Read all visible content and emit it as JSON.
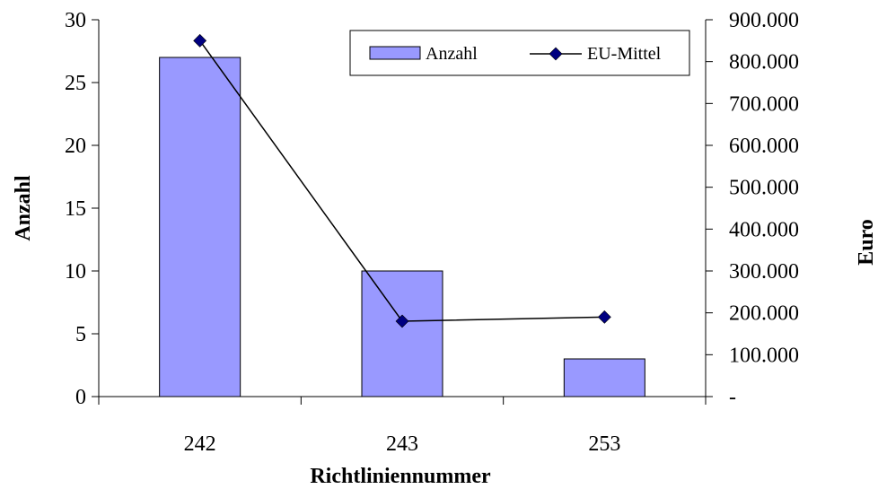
{
  "chart_data": {
    "type": "bar",
    "categories": [
      "242",
      "243",
      "253"
    ],
    "series": [
      {
        "name": "Anzahl",
        "type": "bar",
        "axis": "left",
        "values": [
          27,
          10,
          3
        ],
        "color": "#9999ff"
      },
      {
        "name": "EU-Mittel",
        "type": "line",
        "axis": "right",
        "values": [
          850000,
          180000,
          190000
        ],
        "color": "#000080"
      }
    ],
    "xlabel": "Richtliniennummer",
    "ylabel": "Anzahl",
    "y2label": "Euro",
    "ylim": [
      0,
      30
    ],
    "y2lim": [
      0,
      900000
    ],
    "yticks": [
      "0",
      "5",
      "10",
      "15",
      "20",
      "25",
      "30"
    ],
    "y2ticks": [
      "-",
      "100.000",
      "200.000",
      "300.000",
      "400.000",
      "500.000",
      "600.000",
      "700.000",
      "800.000",
      "900.000"
    ],
    "grid": false,
    "legend_position": "top-right"
  }
}
